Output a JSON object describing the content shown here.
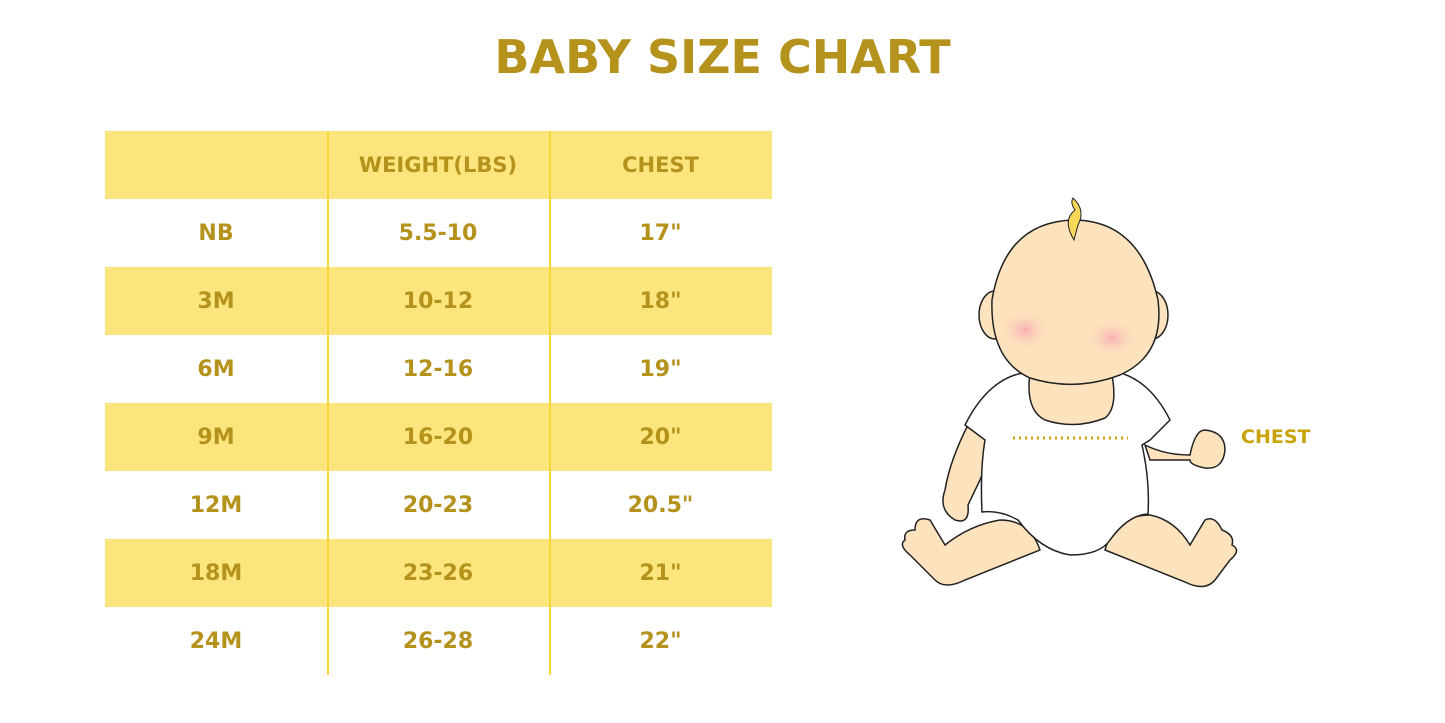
{
  "title": "BABY SIZE CHART",
  "table": {
    "headers": [
      "",
      "WEIGHT(LBS)",
      "CHEST"
    ],
    "rows": [
      [
        "NB",
        "5.5-10",
        "17\""
      ],
      [
        "3M",
        "10-12",
        "18\""
      ],
      [
        "6M",
        "12-16",
        "19\""
      ],
      [
        "9M",
        "16-20",
        "20\""
      ],
      [
        "12M",
        "20-23",
        "20.5\""
      ],
      [
        "18M",
        "23-26",
        "21\""
      ],
      [
        "24M",
        "26-28",
        "22\""
      ]
    ]
  },
  "illustration": {
    "chest_label": "CHEST"
  },
  "colors": {
    "text": "#b5921c",
    "stripe": "#fbe57c",
    "divider": "#f7d63c",
    "skin": "#fde3bd"
  }
}
